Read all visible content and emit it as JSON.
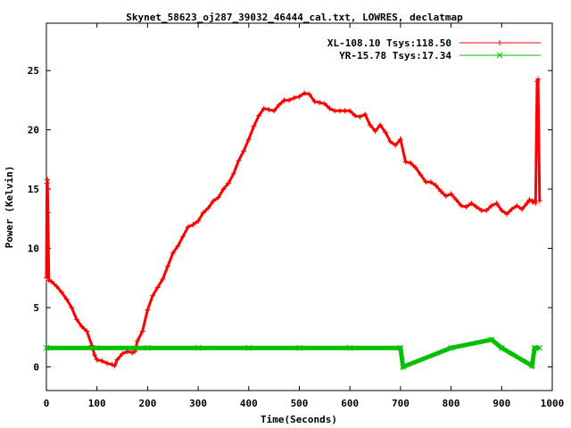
{
  "chart_data": {
    "type": "scatter",
    "title": "Skynet_58623_oj287_39032_46444_cal.txt, LOWRES, declatmap",
    "xlabel": "Time(Seconds)",
    "ylabel": "Power (Kelvin)",
    "xlim": [
      0,
      1000
    ],
    "ylim": [
      -2,
      29
    ],
    "xticks": [
      0,
      100,
      200,
      300,
      400,
      500,
      600,
      700,
      800,
      900,
      1000
    ],
    "yticks": [
      0,
      5,
      10,
      15,
      20,
      25
    ],
    "grid": false,
    "legend_position": "top-right",
    "series": [
      {
        "name": "XL-108.10 Tsys:118.50",
        "color": "#ff0000",
        "marker": "plus",
        "x": [
          0,
          1,
          2,
          3,
          5,
          10,
          20,
          30,
          40,
          50,
          60,
          70,
          80,
          90,
          95,
          100,
          110,
          120,
          130,
          135,
          140,
          150,
          160,
          170,
          175,
          180,
          190,
          200,
          210,
          220,
          230,
          240,
          250,
          260,
          270,
          280,
          290,
          300,
          310,
          320,
          330,
          340,
          350,
          360,
          370,
          380,
          390,
          400,
          410,
          420,
          430,
          440,
          450,
          460,
          470,
          480,
          490,
          500,
          510,
          520,
          530,
          540,
          550,
          560,
          570,
          580,
          590,
          600,
          610,
          620,
          630,
          640,
          650,
          660,
          670,
          680,
          690,
          700,
          710,
          720,
          730,
          740,
          750,
          760,
          770,
          780,
          790,
          800,
          810,
          820,
          830,
          840,
          850,
          860,
          870,
          880,
          890,
          900,
          910,
          920,
          930,
          940,
          950,
          955,
          960,
          962,
          965,
          967,
          970,
          972,
          975
        ],
        "y": [
          7.5,
          15.5,
          15.8,
          13.0,
          7.3,
          7.2,
          6.8,
          6.3,
          5.7,
          5.0,
          4.0,
          3.4,
          3.0,
          1.8,
          1.0,
          0.6,
          0.5,
          0.3,
          0.2,
          0.1,
          0.6,
          1.1,
          1.3,
          1.2,
          1.3,
          2.2,
          3.0,
          4.8,
          6.0,
          6.7,
          7.4,
          8.5,
          9.6,
          10.2,
          11.0,
          11.8,
          12.0,
          12.3,
          13.0,
          13.4,
          14.0,
          14.3,
          15.0,
          15.5,
          16.3,
          17.4,
          18.2,
          19.2,
          20.3,
          21.2,
          21.8,
          21.7,
          21.6,
          22.1,
          22.5,
          22.5,
          22.7,
          22.8,
          23.1,
          23.0,
          22.4,
          22.3,
          22.2,
          21.8,
          21.6,
          21.6,
          21.6,
          21.6,
          21.2,
          21.1,
          21.3,
          20.4,
          19.9,
          20.4,
          19.8,
          19.0,
          18.7,
          19.2,
          17.3,
          17.2,
          16.8,
          16.2,
          15.6,
          15.6,
          15.3,
          14.8,
          14.4,
          14.6,
          14.1,
          13.6,
          13.5,
          13.8,
          13.5,
          13.2,
          13.2,
          13.6,
          13.8,
          13.2,
          12.9,
          13.3,
          13.6,
          13.3,
          13.8,
          14.1,
          14.0,
          13.9,
          14.0,
          13.8,
          24.1,
          24.3,
          14.0
        ]
      },
      {
        "name": "YR-15.78 Tsys:17.34",
        "color": "#00c000",
        "marker": "cross",
        "x": [
          0,
          100,
          200,
          300,
          400,
          500,
          600,
          700,
          705,
          800,
          880,
          900,
          960,
          965,
          975
        ],
        "y": [
          1.6,
          1.6,
          1.6,
          1.6,
          1.6,
          1.6,
          1.6,
          1.6,
          0.0,
          1.6,
          2.3,
          1.6,
          0.1,
          1.6,
          1.6
        ]
      }
    ]
  },
  "legend": {
    "items": [
      {
        "label": "XL-108.10 Tsys:118.50",
        "color": "#ff0000"
      },
      {
        "label": "YR-15.78 Tsys:17.34",
        "color": "#00c000"
      }
    ]
  }
}
